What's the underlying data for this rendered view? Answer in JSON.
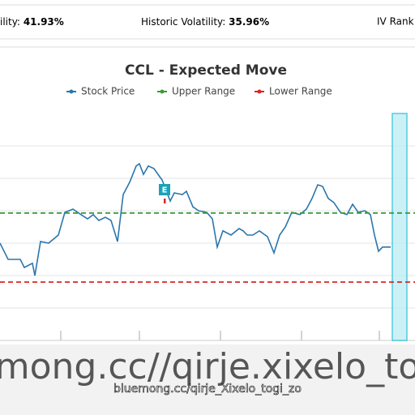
{
  "header": {
    "items": [
      {
        "label": "ility:",
        "value": "41.93%"
      },
      {
        "label": "Historic Volatility:",
        "value": "35.96%"
      },
      {
        "label": "IV Rank",
        "value": null
      }
    ]
  },
  "chart_data": {
    "type": "line",
    "title": "CCL - Expected Move",
    "annotation": "E",
    "xlim": [
      0,
      512
    ],
    "ylim": [
      0,
      7
    ],
    "xticks": [
      75,
      172,
      272,
      372,
      468
    ],
    "yticks": [
      1,
      2,
      3,
      4,
      5,
      6
    ],
    "grid": true,
    "series": [
      {
        "name": "Stock Price",
        "color": "#2b76ad",
        "x": [
          0,
          10,
          25,
          30,
          40,
          43,
          50,
          60,
          72,
          80,
          90,
          100,
          108,
          115,
          122,
          130,
          137,
          145,
          152,
          160,
          168,
          172,
          177,
          183,
          190,
          197,
          200,
          210,
          215,
          225,
          230,
          238,
          245,
          255,
          262,
          268,
          275,
          285,
          295,
          300,
          305,
          312,
          320,
          330,
          338,
          345,
          352,
          360,
          370,
          378,
          385,
          392,
          398,
          405,
          412,
          420,
          428,
          435,
          442,
          450,
          457,
          462,
          467,
          472,
          482
        ],
        "values": [
          3.0,
          2.5,
          2.5,
          2.25,
          2.38,
          2.0,
          3.05,
          3.0,
          3.25,
          3.95,
          4.05,
          3.88,
          3.75,
          3.88,
          3.7,
          3.8,
          3.7,
          3.05,
          4.5,
          4.88,
          5.38,
          5.45,
          5.12,
          5.38,
          5.3,
          5.05,
          4.95,
          4.3,
          4.55,
          4.5,
          4.6,
          4.12,
          4.0,
          3.95,
          3.75,
          2.88,
          3.38,
          3.25,
          3.45,
          3.38,
          3.25,
          3.25,
          3.38,
          3.2,
          2.7,
          3.25,
          3.5,
          3.95,
          3.88,
          4.05,
          4.38,
          4.8,
          4.75,
          4.38,
          4.25,
          3.95,
          3.88,
          4.2,
          3.95,
          4.0,
          3.88,
          3.25,
          2.75,
          2.88,
          2.88
        ]
      },
      {
        "name": "Upper Range",
        "color": "#3a9a3a",
        "x": [
          0,
          512
        ],
        "values": [
          3.93,
          3.93
        ]
      },
      {
        "name": "Lower Range",
        "color": "#d62728",
        "x": [
          0,
          512
        ],
        "values": [
          1.8,
          1.8
        ]
      }
    ],
    "highlight_x": [
      484,
      502
    ],
    "earnings_x": 203
  },
  "watermark": {
    "large": "mong.cc//qirje.xixelo_to",
    "small": "bluemong.cc/qirje_Xixelo_togi_zo"
  }
}
